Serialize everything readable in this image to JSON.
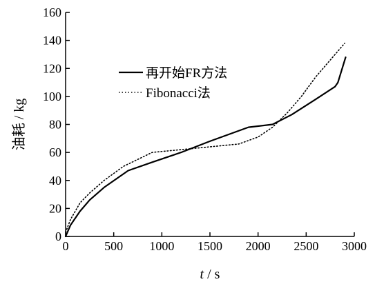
{
  "chart_data": {
    "type": "line",
    "xlabel": "t / s",
    "xlabel_var": "t",
    "xlabel_unit": " / s",
    "ylabel": "油耗 / kg",
    "xlim": [
      0,
      3000
    ],
    "ylim": [
      0,
      160
    ],
    "xticks": [
      0,
      500,
      1000,
      1500,
      2000,
      2500,
      3000
    ],
    "yticks": [
      0,
      20,
      40,
      60,
      80,
      100,
      120,
      140,
      160
    ],
    "grid": false,
    "legend_position": "top-left",
    "series": [
      {
        "name": "再开始FR方法",
        "style": "solid",
        "color": "#000000",
        "x": [
          0,
          50,
          150,
          250,
          400,
          650,
          900,
          1200,
          1500,
          1900,
          2150,
          2350,
          2600,
          2800,
          2830,
          2910
        ],
        "y": [
          0,
          8,
          18,
          26,
          35,
          47,
          53,
          60,
          68,
          78,
          80,
          87,
          98,
          107,
          110,
          128
        ]
      },
      {
        "name": "Fibonacci法",
        "style": "dotted",
        "color": "#000000",
        "x": [
          0,
          50,
          150,
          250,
          400,
          600,
          900,
          1200,
          1500,
          1800,
          2000,
          2150,
          2300,
          2450,
          2600,
          2750,
          2900
        ],
        "y": [
          3,
          12,
          24,
          31,
          40,
          50,
          60,
          62,
          64,
          66,
          71,
          78,
          88,
          100,
          114,
          126,
          138
        ]
      }
    ]
  }
}
